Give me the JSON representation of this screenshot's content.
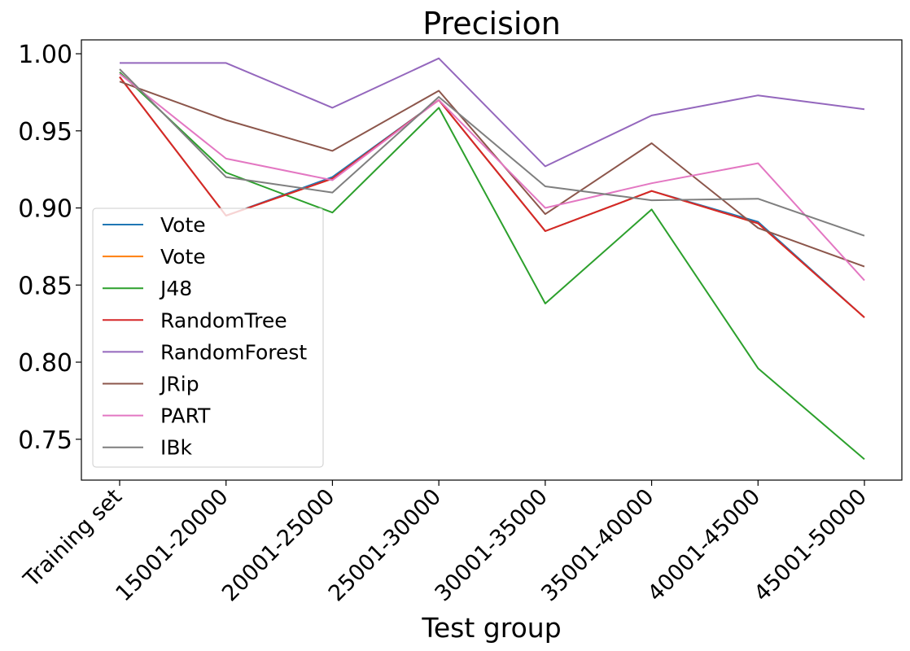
{
  "chart_data": {
    "type": "line",
    "title": "Precision",
    "xlabel": "Test group",
    "ylabel": "",
    "categories": [
      "Training set",
      "15001-20000",
      "20001-25000",
      "25001-30000",
      "30001-35000",
      "35001-40000",
      "40001-45000",
      "45001-50000"
    ],
    "yticks": [
      "0.75",
      "0.80",
      "0.85",
      "0.90",
      "0.95",
      "1.00"
    ],
    "ylim": [
      0.7235,
      1.009
    ],
    "grid": false,
    "legend_position": "lower-left",
    "series": [
      {
        "name": "Vote",
        "color": "#1f77b4",
        "values": [
          0.985,
          0.895,
          0.92,
          0.97,
          0.885,
          0.911,
          0.891,
          0.829
        ]
      },
      {
        "name": "Vote",
        "color": "#ff7f0e",
        "values": [
          0.985,
          0.895,
          0.919,
          0.97,
          0.885,
          0.911,
          0.89,
          0.829
        ]
      },
      {
        "name": "J48",
        "color": "#2ca02c",
        "values": [
          0.988,
          0.923,
          0.897,
          0.965,
          0.838,
          0.899,
          0.796,
          0.737
        ]
      },
      {
        "name": "RandomTree",
        "color": "#d62728",
        "values": [
          0.985,
          0.895,
          0.919,
          0.97,
          0.885,
          0.911,
          0.89,
          0.829
        ]
      },
      {
        "name": "RandomForest",
        "color": "#9467bd",
        "values": [
          0.994,
          0.994,
          0.965,
          0.997,
          0.927,
          0.96,
          0.973,
          0.964
        ]
      },
      {
        "name": "JRip",
        "color": "#8c564b",
        "values": [
          0.982,
          0.957,
          0.937,
          0.976,
          0.896,
          0.942,
          0.887,
          0.862
        ]
      },
      {
        "name": "PART",
        "color": "#e377c2",
        "values": [
          0.987,
          0.932,
          0.918,
          0.97,
          0.9,
          0.916,
          0.929,
          0.853
        ]
      },
      {
        "name": "IBk",
        "color": "#7f7f7f",
        "values": [
          0.99,
          0.92,
          0.91,
          0.972,
          0.914,
          0.905,
          0.906,
          0.882
        ]
      }
    ]
  }
}
